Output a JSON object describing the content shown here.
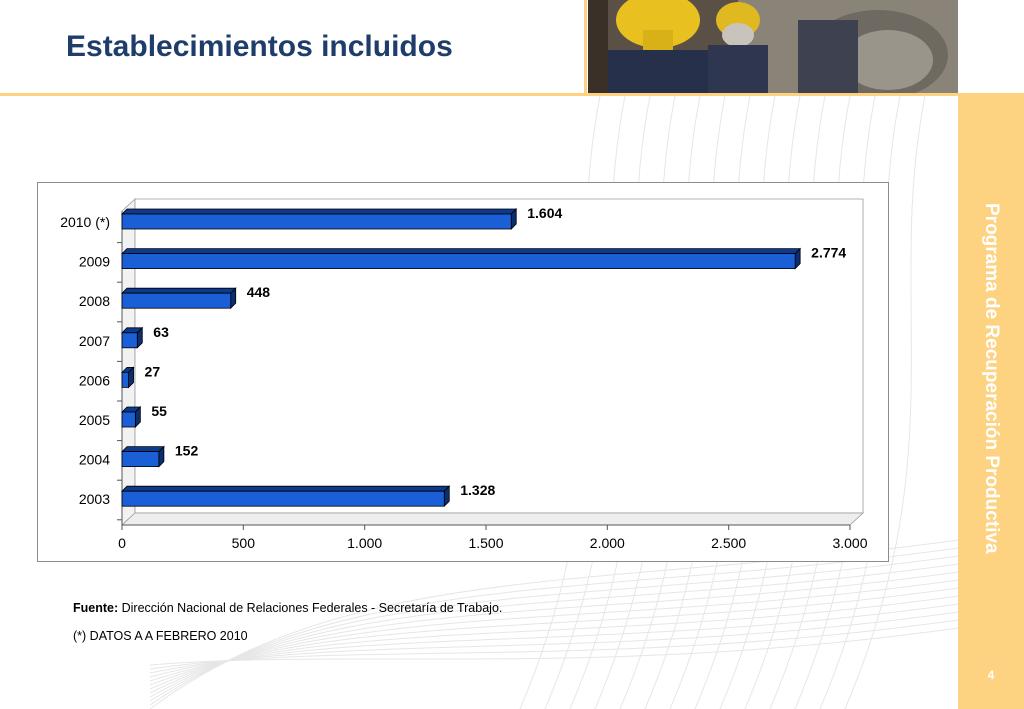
{
  "header": {
    "title": "Establecimientos incluidos"
  },
  "sidebar": {
    "label": "Programa de Recuperación Productiva",
    "page_number": "4"
  },
  "colors": {
    "title": "#1f3d6b",
    "accent": "#fdd280",
    "bar_front": "#1a5fd6",
    "bar_top": "#0d3a8c",
    "bar_side": "#0a2e6e"
  },
  "photo": {
    "icon": "workers-with-helmets-photo"
  },
  "chart_data": {
    "type": "bar",
    "orientation": "horizontal",
    "style": "3d",
    "categories": [
      "2010 (*)",
      "2009",
      "2008",
      "2007",
      "2006",
      "2005",
      "2004",
      "2003"
    ],
    "values": [
      1604,
      2774,
      448,
      63,
      27,
      55,
      152,
      1328
    ],
    "data_labels": [
      "1.604",
      "2.774",
      "448",
      "63",
      "27",
      "55",
      "152",
      "1.328"
    ],
    "xlim": [
      0,
      3000
    ],
    "xticks": [
      0,
      500,
      1000,
      1500,
      2000,
      2500,
      3000
    ],
    "xtick_labels": [
      "0",
      "500",
      "1.000",
      "1.500",
      "2.000",
      "2.500",
      "3.000"
    ],
    "grid": false,
    "legend": "none"
  },
  "footnotes": {
    "source_label": "Fuente:",
    "source_text": " Dirección Nacional de Relaciones Federales - Secretaría de Trabajo.",
    "note": "(*) DATOS A A FEBRERO 2010"
  }
}
